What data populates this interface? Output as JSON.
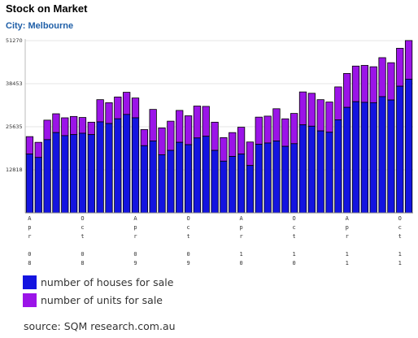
{
  "chart_data": {
    "type": "bar",
    "stacked": true,
    "title": "Stock on Market",
    "subtitle": "City: Melbourne",
    "source": "source: SQM research.com.au",
    "y_ticks": [
      12818,
      25635,
      38453,
      51270
    ],
    "ylim": [
      0,
      51270
    ],
    "x_tick_labels": [
      {
        "index": 0,
        "month": "Apr",
        "year": "08"
      },
      {
        "index": 6,
        "month": "Oct",
        "year": "08"
      },
      {
        "index": 12,
        "month": "Apr",
        "year": "09"
      },
      {
        "index": 18,
        "month": "Oct",
        "year": "09"
      },
      {
        "index": 24,
        "month": "Apr",
        "year": "10"
      },
      {
        "index": 30,
        "month": "Oct",
        "year": "10"
      },
      {
        "index": 36,
        "month": "Apr",
        "year": "11"
      },
      {
        "index": 42,
        "month": "Oct",
        "year": "11"
      }
    ],
    "series": [
      {
        "name": "number of houses for sale",
        "color": "#1414e0",
        "values": [
          17500,
          16500,
          21800,
          23900,
          23000,
          23300,
          23700,
          23300,
          27100,
          26600,
          28000,
          29300,
          28300,
          20000,
          21400,
          17300,
          18600,
          21000,
          20300,
          22300,
          22800,
          18600,
          15400,
          16800,
          17500,
          14100,
          20400,
          20800,
          21400,
          19800,
          20600,
          26200,
          25800,
          24400,
          24000,
          27700,
          31400,
          33100,
          32900,
          32800,
          34600,
          33600,
          37700,
          39800
        ],
        "totals": [
          22700,
          21000,
          27600,
          29500,
          28300,
          28700,
          28400,
          27000,
          33700,
          32800,
          34500,
          35900,
          34200,
          24800,
          30800,
          25300,
          27300,
          30500,
          28900,
          31800,
          31700,
          27000,
          22400,
          23900,
          25500,
          21100,
          28500,
          28800,
          31000,
          28000,
          29600,
          36000,
          35600,
          33700,
          33000,
          37500,
          41500,
          43700,
          43900,
          43500,
          46200,
          44700,
          49000,
          51300
        ]
      },
      {
        "name": "number of units for sale",
        "color": "#9b14e8"
      }
    ]
  }
}
